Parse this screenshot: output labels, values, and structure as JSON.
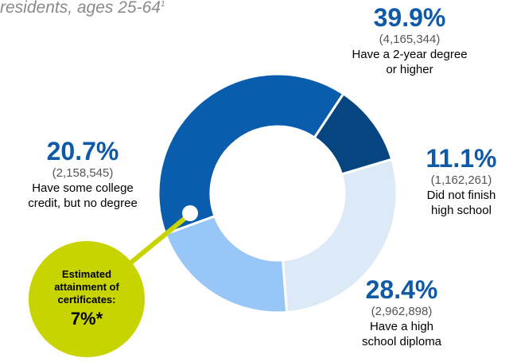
{
  "chart_data": {
    "type": "pie",
    "subtitle_prefix": "residents, ages 25-64",
    "subtitle_marker": "1",
    "slices": [
      {
        "percent": "39.9%",
        "value": 39.9,
        "count": "(4,165,344)",
        "desc": "Have a 2-year degree or higher",
        "color": "#0a5cad"
      },
      {
        "percent": "11.1%",
        "value": 11.1,
        "count": "(1,162,261)",
        "desc": "Did not finish high school",
        "color": "#06457f"
      },
      {
        "percent": "28.4%",
        "value": 28.4,
        "count": "(2,962,898)",
        "desc": "Have a high school diploma",
        "color": "#dce9f6"
      },
      {
        "percent": "20.7%",
        "value": 20.7,
        "count": "(2,158,545)",
        "desc": "Have some college credit, but no degree",
        "color": "#98c6f7"
      }
    ],
    "callout": {
      "text": "Estimated attainment of certificates:",
      "value": "7%*",
      "color": "#c8d400"
    }
  }
}
